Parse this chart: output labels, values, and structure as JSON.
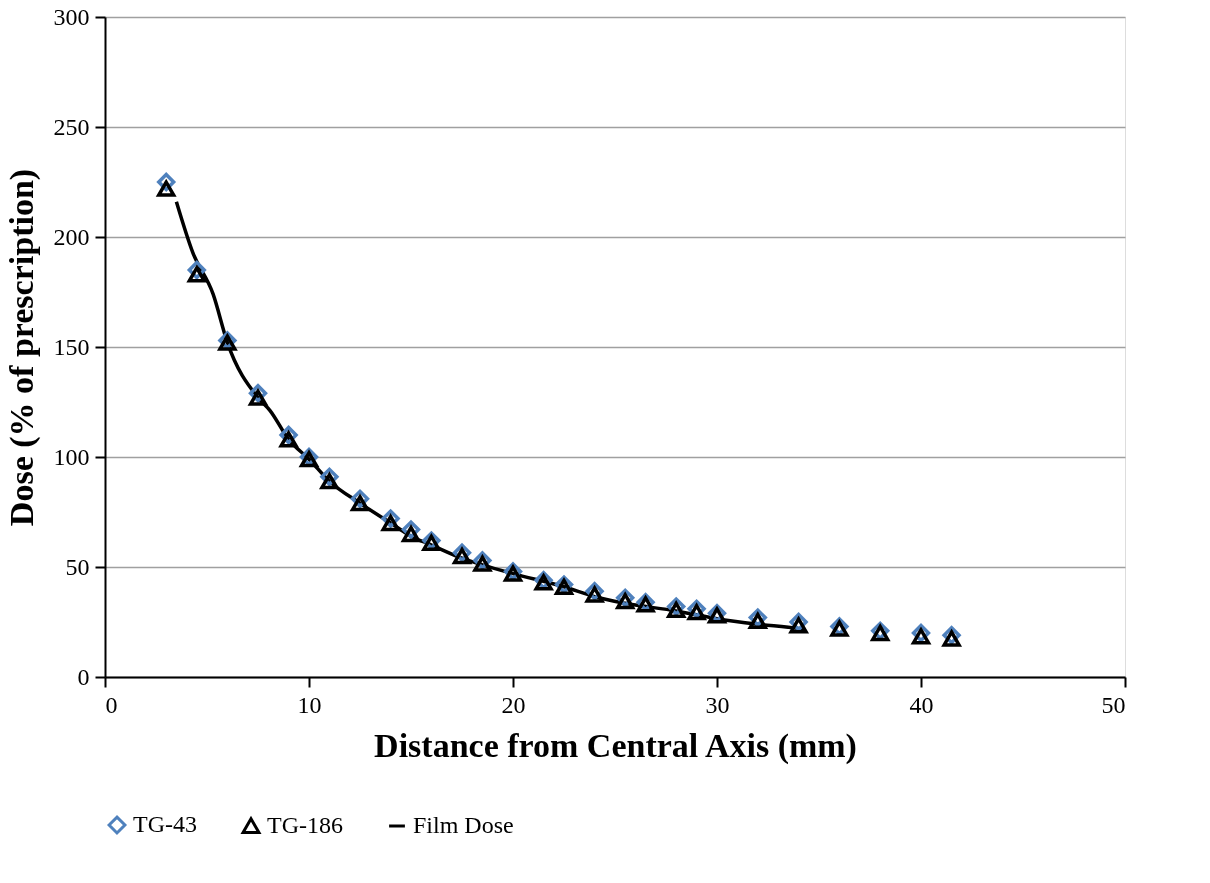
{
  "chart_data": {
    "type": "scatter",
    "xlabel": "Distance from Central Axis (mm)",
    "ylabel": "Dose (% of prescription)",
    "xlim": [
      0,
      50
    ],
    "xticks": [
      0,
      10,
      20,
      30,
      40,
      50
    ],
    "ylim": [
      0,
      300
    ],
    "yticks": [
      0,
      50,
      100,
      150,
      200,
      250,
      300
    ],
    "grid": "y",
    "legend": "bottom",
    "series": [
      {
        "name": "TG-43",
        "color": "#4f81bd",
        "marker": "diamond",
        "x": [
          3,
          4.5,
          6,
          7.5,
          9,
          10,
          11,
          12.5,
          14,
          15,
          16,
          17.5,
          18.5,
          20,
          21.5,
          22.5,
          24,
          25.5,
          26.5,
          28,
          29,
          30,
          32,
          34,
          36,
          38,
          40,
          41.5
        ],
        "values": [
          225,
          185,
          153,
          129,
          110,
          100,
          91,
          81,
          72,
          67,
          62,
          56.5,
          53,
          48,
          44,
          42,
          39,
          36,
          34,
          32,
          31,
          29,
          27,
          25,
          23,
          21,
          20,
          19
        ]
      },
      {
        "name": "TG-186",
        "color": "#000000",
        "marker": "triangle",
        "x": [
          3,
          4.5,
          6,
          7.5,
          9,
          10,
          11,
          12.5,
          14,
          15,
          16,
          17.5,
          18.5,
          20,
          21.5,
          22.5,
          24,
          25.5,
          26.5,
          28,
          29,
          30,
          32,
          34,
          36,
          38,
          40,
          41.5
        ],
        "values": [
          222,
          183,
          152,
          127,
          108,
          99,
          89,
          79,
          70,
          65,
          61,
          55,
          51.5,
          47,
          43,
          41,
          37.5,
          34.5,
          33,
          30.5,
          29.5,
          28,
          25.5,
          23.5,
          22,
          20,
          18.5,
          17.5
        ]
      },
      {
        "name": "Film Dose",
        "color": "#000000",
        "type": "line",
        "x": [
          3.5,
          4.3,
          5.3,
          6,
          7.5,
          8.1,
          9,
          10,
          11,
          12.5,
          14,
          15,
          16,
          17.5,
          18.5,
          20,
          22.5,
          24,
          25.5,
          28,
          30,
          32,
          34,
          34.3
        ],
        "values": [
          216,
          193,
          174,
          152,
          127,
          121,
          108,
          99,
          89,
          79,
          70,
          64,
          60,
          54,
          51,
          47,
          41,
          36.5,
          33.5,
          30,
          26.5,
          24,
          22,
          21.5
        ]
      }
    ]
  }
}
